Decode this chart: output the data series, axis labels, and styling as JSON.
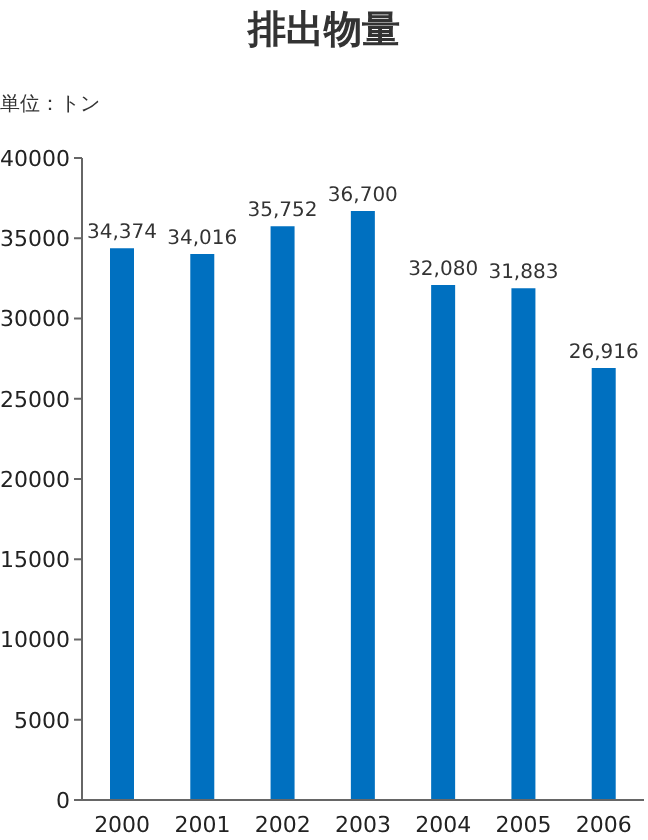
{
  "chart_data": {
    "type": "bar",
    "title": "排出物量",
    "ylabel": "単位：トン",
    "categories": [
      "2000",
      "2001",
      "2002",
      "2003",
      "2004",
      "2005",
      "2006"
    ],
    "values": [
      34374,
      34016,
      35752,
      36700,
      32080,
      31883,
      26916
    ],
    "value_labels": [
      "34,374",
      "34,016",
      "35,752",
      "36,700",
      "32,080",
      "31,883",
      "26,916"
    ],
    "color": "#0070c0",
    "ylim": [
      0,
      40000
    ],
    "yticks": [
      0,
      5000,
      10000,
      15000,
      20000,
      25000,
      30000,
      35000,
      40000
    ],
    "grid": false,
    "legend": false
  }
}
